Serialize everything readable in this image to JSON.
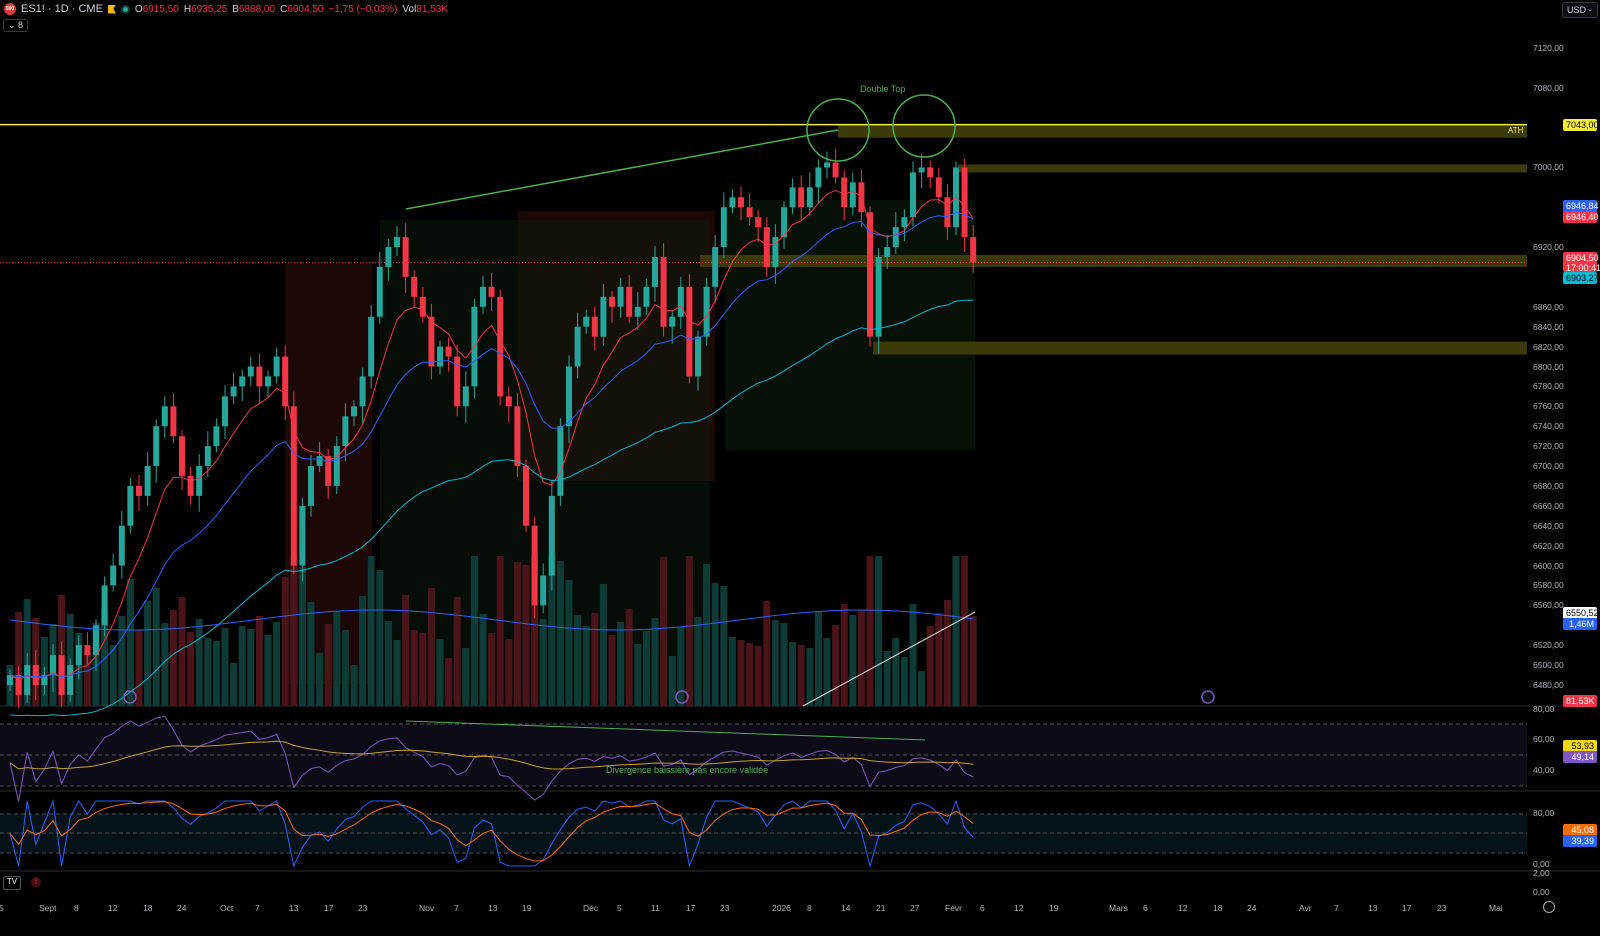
{
  "header": {
    "symbol": "ES1! · 1D · CME",
    "logo_text": "500",
    "open_l": "O",
    "open": "6915,50",
    "high_l": "H",
    "high": "6935,25",
    "low_l": "B",
    "low": "6888,00",
    "close_l": "C",
    "close": "6904,50",
    "change": "−1,75 (−0,03%)",
    "vol_l": "Vol",
    "vol": "81,53K",
    "collapse": "8"
  },
  "currency": "USD",
  "annotations": {
    "double_top": "Double Top",
    "ath": "ATH",
    "divergence": "Divergence baissière pas encore validée"
  },
  "price_axis": [
    "7120,00",
    "7080,00",
    "7000,00",
    "6920,00",
    "6860,00",
    "6840,00",
    "6820,00",
    "6800,00",
    "6780,00",
    "6760,00",
    "6740,00",
    "6720,00",
    "6700,00",
    "6680,00",
    "6660,00",
    "6640,00",
    "6620,00",
    "6600,00",
    "6580,00",
    "6560,00",
    "6520,00",
    "6500,00",
    "6480,00"
  ],
  "labels": {
    "ath_price": "7043,00",
    "ema_blue": "6946,84",
    "ema_red": "6946,40",
    "last": "6904,50",
    "countdown": "17:00:41",
    "ema_cyan": "6903,27",
    "vol_ma": "6550,52",
    "vol_avg": "1,46M",
    "vol_last": "81,53K",
    "rsi": "53,93",
    "rsi_ma": "49,14",
    "stoch_d": "45,08",
    "stoch_k": "39,39"
  },
  "rsi_axis": {
    "a": "80,00",
    "b": "60,00",
    "c": "40,00"
  },
  "stoch_axis": {
    "a": "80,00",
    "b": "0,00"
  },
  "extra_axis": {
    "a": "2,00",
    "b": "0,00"
  },
  "time_axis": [
    "5",
    "Sept",
    "8",
    "12",
    "18",
    "24",
    "Oct",
    "7",
    "13",
    "17",
    "23",
    "Nov",
    "7",
    "13",
    "19",
    "Déc",
    "5",
    "11",
    "17",
    "23",
    "2026",
    "8",
    "14",
    "21",
    "27",
    "Févr",
    "6",
    "12",
    "19",
    "Mars",
    "6",
    "12",
    "18",
    "24",
    "Avr",
    "7",
    "13",
    "17",
    "23",
    "Mai"
  ],
  "colors": {
    "up": "#26a69a",
    "down": "#f23645",
    "ath": "#f5eb3b"
  },
  "chart_data": {
    "type": "candlestick",
    "symbol": "ES1!",
    "interval": "1D",
    "yrange": [
      6480,
      7120
    ],
    "closes": [
      6490,
      6470,
      6500,
      6480,
      6490,
      6510,
      6470,
      6500,
      6520,
      6510,
      6540,
      6580,
      6600,
      6640,
      6680,
      6670,
      6700,
      6740,
      6760,
      6730,
      6690,
      6670,
      6700,
      6720,
      6740,
      6770,
      6780,
      6790,
      6800,
      6780,
      6790,
      6810,
      6760,
      6600,
      6660,
      6700,
      6710,
      6680,
      6720,
      6750,
      6760,
      6790,
      6850,
      6900,
      6920,
      6930,
      6890,
      6870,
      6850,
      6800,
      6820,
      6810,
      6760,
      6780,
      6860,
      6880,
      6870,
      6770,
      6760,
      6700,
      6640,
      6560,
      6590,
      6670,
      6740,
      6800,
      6840,
      6850,
      6830,
      6870,
      6860,
      6880,
      6850,
      6860,
      6880,
      6910,
      6840,
      6850,
      6880,
      6790,
      6830,
      6880,
      6920,
      6960,
      6970,
      6960,
      6950,
      6940,
      6900,
      6930,
      6960,
      6980,
      6960,
      6980,
      7000,
      7005,
      6990,
      6960,
      6985,
      6955,
      6830,
      6910,
      6920,
      6940,
      6950,
      6995,
      7000,
      6990,
      6970,
      6940,
      7000,
      6930,
      6904.5
    ],
    "levels": {
      "ath": 7043,
      "resistance": 7000,
      "support1": 6900,
      "support2": 6820
    }
  }
}
